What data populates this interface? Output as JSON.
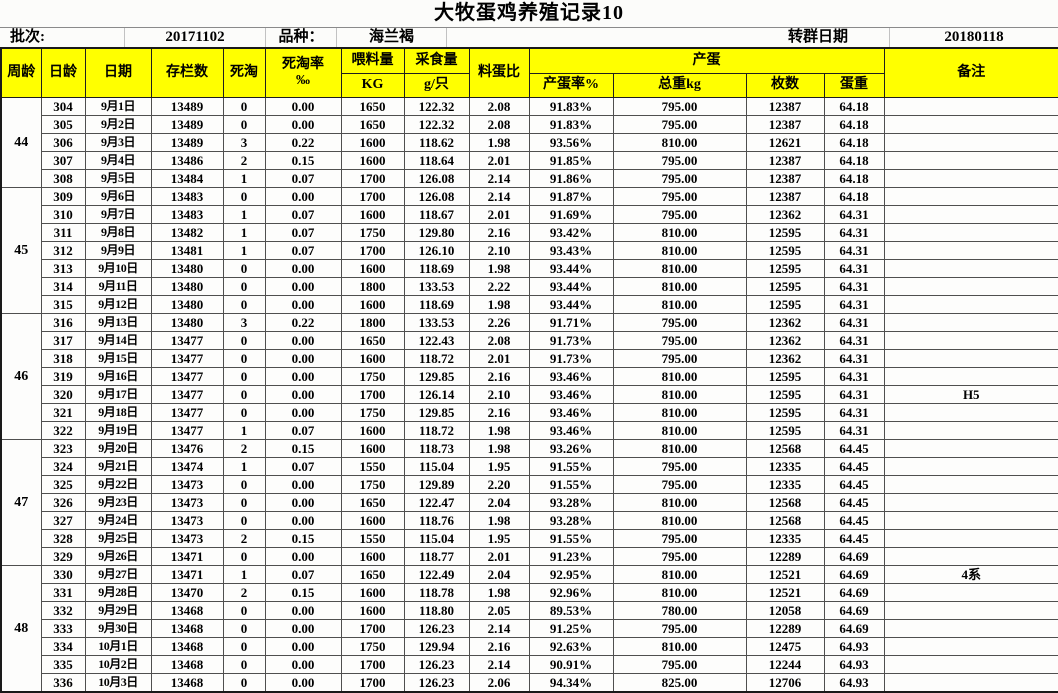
{
  "title": "大牧蛋鸡养殖记录10",
  "info": {
    "batch_label": "批次:",
    "batch_value": "20171102",
    "breed_label": "品种：",
    "breed_value": "海兰褐",
    "transfer_label": "转群日期",
    "transfer_value": "20180118"
  },
  "headers": {
    "week_age": "周龄",
    "day_age": "日龄",
    "date": "日期",
    "stock": "存栏数",
    "deaths": "死淘",
    "death_rate_line1": "死淘率",
    "death_rate_line2": "‰",
    "feed_line1": "喂料量",
    "feed_line2": "KG",
    "intake_line1": "采食量",
    "intake_line2": "g/只",
    "feed_egg_ratio": "料蛋比",
    "egg_group": "产蛋",
    "lay_rate": "产蛋率%",
    "total_weight": "总重kg",
    "egg_count": "枚数",
    "egg_weight": "蛋重",
    "remark": "备注"
  },
  "weeks": [
    {
      "week": "44",
      "rows": [
        [
          "304",
          "9月1日",
          "13489",
          "0",
          "0.00",
          "1650",
          "122.32",
          "2.08",
          "91.83%",
          "795.00",
          "12387",
          "64.18",
          ""
        ],
        [
          "305",
          "9月2日",
          "13489",
          "0",
          "0.00",
          "1650",
          "122.32",
          "2.08",
          "91.83%",
          "795.00",
          "12387",
          "64.18",
          ""
        ],
        [
          "306",
          "9月3日",
          "13489",
          "3",
          "0.22",
          "1600",
          "118.62",
          "1.98",
          "93.56%",
          "810.00",
          "12621",
          "64.18",
          ""
        ],
        [
          "307",
          "9月4日",
          "13486",
          "2",
          "0.15",
          "1600",
          "118.64",
          "2.01",
          "91.85%",
          "795.00",
          "12387",
          "64.18",
          ""
        ],
        [
          "308",
          "9月5日",
          "13484",
          "1",
          "0.07",
          "1700",
          "126.08",
          "2.14",
          "91.86%",
          "795.00",
          "12387",
          "64.18",
          ""
        ]
      ]
    },
    {
      "week": "45",
      "rows": [
        [
          "309",
          "9月6日",
          "13483",
          "0",
          "0.00",
          "1700",
          "126.08",
          "2.14",
          "91.87%",
          "795.00",
          "12387",
          "64.18",
          ""
        ],
        [
          "310",
          "9月7日",
          "13483",
          "1",
          "0.07",
          "1600",
          "118.67",
          "2.01",
          "91.69%",
          "795.00",
          "12362",
          "64.31",
          ""
        ],
        [
          "311",
          "9月8日",
          "13482",
          "1",
          "0.07",
          "1750",
          "129.80",
          "2.16",
          "93.42%",
          "810.00",
          "12595",
          "64.31",
          ""
        ],
        [
          "312",
          "9月9日",
          "13481",
          "1",
          "0.07",
          "1700",
          "126.10",
          "2.10",
          "93.43%",
          "810.00",
          "12595",
          "64.31",
          ""
        ],
        [
          "313",
          "9月10日",
          "13480",
          "0",
          "0.00",
          "1600",
          "118.69",
          "1.98",
          "93.44%",
          "810.00",
          "12595",
          "64.31",
          ""
        ],
        [
          "314",
          "9月11日",
          "13480",
          "0",
          "0.00",
          "1800",
          "133.53",
          "2.22",
          "93.44%",
          "810.00",
          "12595",
          "64.31",
          ""
        ],
        [
          "315",
          "9月12日",
          "13480",
          "0",
          "0.00",
          "1600",
          "118.69",
          "1.98",
          "93.44%",
          "810.00",
          "12595",
          "64.31",
          ""
        ]
      ]
    },
    {
      "week": "46",
      "rows": [
        [
          "316",
          "9月13日",
          "13480",
          "3",
          "0.22",
          "1800",
          "133.53",
          "2.26",
          "91.71%",
          "795.00",
          "12362",
          "64.31",
          ""
        ],
        [
          "317",
          "9月14日",
          "13477",
          "0",
          "0.00",
          "1650",
          "122.43",
          "2.08",
          "91.73%",
          "795.00",
          "12362",
          "64.31",
          ""
        ],
        [
          "318",
          "9月15日",
          "13477",
          "0",
          "0.00",
          "1600",
          "118.72",
          "2.01",
          "91.73%",
          "795.00",
          "12362",
          "64.31",
          ""
        ],
        [
          "319",
          "9月16日",
          "13477",
          "0",
          "0.00",
          "1750",
          "129.85",
          "2.16",
          "93.46%",
          "810.00",
          "12595",
          "64.31",
          ""
        ],
        [
          "320",
          "9月17日",
          "13477",
          "0",
          "0.00",
          "1700",
          "126.14",
          "2.10",
          "93.46%",
          "810.00",
          "12595",
          "64.31",
          "H5"
        ],
        [
          "321",
          "9月18日",
          "13477",
          "0",
          "0.00",
          "1750",
          "129.85",
          "2.16",
          "93.46%",
          "810.00",
          "12595",
          "64.31",
          ""
        ],
        [
          "322",
          "9月19日",
          "13477",
          "1",
          "0.07",
          "1600",
          "118.72",
          "1.98",
          "93.46%",
          "810.00",
          "12595",
          "64.31",
          ""
        ]
      ]
    },
    {
      "week": "47",
      "rows": [
        [
          "323",
          "9月20日",
          "13476",
          "2",
          "0.15",
          "1600",
          "118.73",
          "1.98",
          "93.26%",
          "810.00",
          "12568",
          "64.45",
          ""
        ],
        [
          "324",
          "9月21日",
          "13474",
          "1",
          "0.07",
          "1550",
          "115.04",
          "1.95",
          "91.55%",
          "795.00",
          "12335",
          "64.45",
          ""
        ],
        [
          "325",
          "9月22日",
          "13473",
          "0",
          "0.00",
          "1750",
          "129.89",
          "2.20",
          "91.55%",
          "795.00",
          "12335",
          "64.45",
          ""
        ],
        [
          "326",
          "9月23日",
          "13473",
          "0",
          "0.00",
          "1650",
          "122.47",
          "2.04",
          "93.28%",
          "810.00",
          "12568",
          "64.45",
          ""
        ],
        [
          "327",
          "9月24日",
          "13473",
          "0",
          "0.00",
          "1600",
          "118.76",
          "1.98",
          "93.28%",
          "810.00",
          "12568",
          "64.45",
          ""
        ],
        [
          "328",
          "9月25日",
          "13473",
          "2",
          "0.15",
          "1550",
          "115.04",
          "1.95",
          "91.55%",
          "795.00",
          "12335",
          "64.45",
          ""
        ],
        [
          "329",
          "9月26日",
          "13471",
          "0",
          "0.00",
          "1600",
          "118.77",
          "2.01",
          "91.23%",
          "795.00",
          "12289",
          "64.69",
          ""
        ]
      ]
    },
    {
      "week": "48",
      "rows": [
        [
          "330",
          "9月27日",
          "13471",
          "1",
          "0.07",
          "1650",
          "122.49",
          "2.04",
          "92.95%",
          "810.00",
          "12521",
          "64.69",
          "4系"
        ],
        [
          "331",
          "9月28日",
          "13470",
          "2",
          "0.15",
          "1600",
          "118.78",
          "1.98",
          "92.96%",
          "810.00",
          "12521",
          "64.69",
          ""
        ],
        [
          "332",
          "9月29日",
          "13468",
          "0",
          "0.00",
          "1600",
          "118.80",
          "2.05",
          "89.53%",
          "780.00",
          "12058",
          "64.69",
          ""
        ],
        [
          "333",
          "9月30日",
          "13468",
          "0",
          "0.00",
          "1700",
          "126.23",
          "2.14",
          "91.25%",
          "795.00",
          "12289",
          "64.69",
          ""
        ],
        [
          "334",
          "10月1日",
          "13468",
          "0",
          "0.00",
          "1750",
          "129.94",
          "2.16",
          "92.63%",
          "810.00",
          "12475",
          "64.93",
          ""
        ],
        [
          "335",
          "10月2日",
          "13468",
          "0",
          "0.00",
          "1700",
          "126.23",
          "2.14",
          "90.91%",
          "795.00",
          "12244",
          "64.93",
          ""
        ],
        [
          "336",
          "10月3日",
          "13468",
          "0",
          "0.00",
          "1700",
          "126.23",
          "2.06",
          "94.34%",
          "825.00",
          "12706",
          "64.93",
          ""
        ]
      ]
    }
  ]
}
